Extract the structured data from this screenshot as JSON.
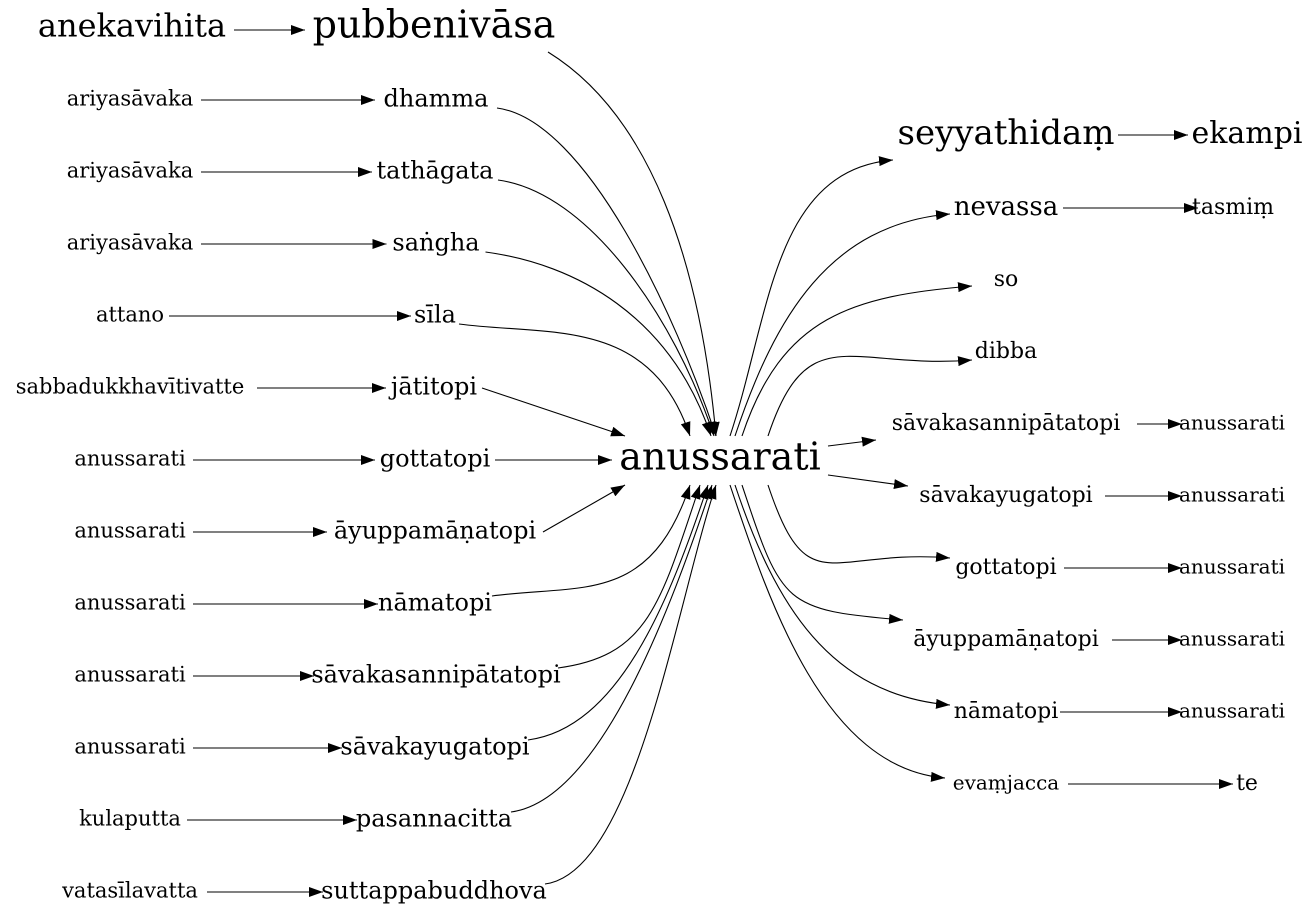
{
  "graph": {
    "center": "anussarati",
    "top": {
      "source": "anekavihita",
      "target": "pubbenivāsa"
    },
    "left_pairs": [
      {
        "source": "ariyasāvaka",
        "target": "dhamma"
      },
      {
        "source": "ariyasāvaka",
        "target": "tathāgata"
      },
      {
        "source": "ariyasāvaka",
        "target": "saṅgha"
      },
      {
        "source": "attano",
        "target": "sīla"
      },
      {
        "source": "sabbadukkhavītivatte",
        "target": "jātitopi"
      },
      {
        "source": "anussarati",
        "target": "gottatopi"
      },
      {
        "source": "anussarati",
        "target": "āyuppamāṇatopi"
      },
      {
        "source": "anussarati",
        "target": "nāmatopi"
      },
      {
        "source": "anussarati",
        "target": "sāvakasannipātatopi"
      },
      {
        "source": "anussarati",
        "target": "sāvakayugatopi"
      },
      {
        "source": "kulaputta",
        "target": "pasannacitta"
      },
      {
        "source": "vatasīlavatta",
        "target": "suttappabuddhova"
      }
    ],
    "right_pairs": [
      {
        "source": "seyyathidaṃ",
        "target": "ekampi"
      },
      {
        "source": "nevassa",
        "target": "tasmiṃ"
      },
      {
        "source": "so",
        "target": ""
      },
      {
        "source": "dibba",
        "target": ""
      },
      {
        "source": "sāvakasannipātatopi",
        "target": "anussarati"
      },
      {
        "source": "sāvakayugatopi",
        "target": "anussarati"
      },
      {
        "source": "gottatopi",
        "target": "anussarati"
      },
      {
        "source": "āyuppamāṇatopi",
        "target": "anussarati"
      },
      {
        "source": "nāmatopi",
        "target": "anussarati"
      },
      {
        "source": "evaṃjacca",
        "target": "te"
      }
    ]
  }
}
